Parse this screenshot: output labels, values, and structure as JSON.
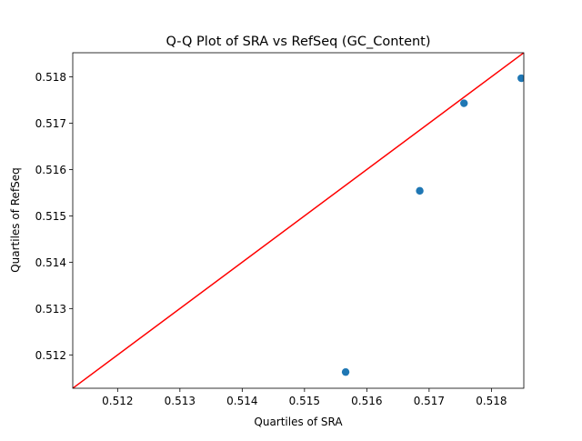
{
  "chart_data": {
    "type": "scatter",
    "title": "Q-Q Plot of SRA vs RefSeq (GC_Content)",
    "xlabel": "Quartiles of SRA",
    "ylabel": "Quartiles of RefSeq",
    "xlim": [
      0.51128,
      0.51852
    ],
    "ylim": [
      0.51128,
      0.51852
    ],
    "xticks": [
      "0.512",
      "0.513",
      "0.514",
      "0.515",
      "0.516",
      "0.517",
      "0.518"
    ],
    "yticks": [
      "0.512",
      "0.513",
      "0.514",
      "0.515",
      "0.516",
      "0.517",
      "0.518"
    ],
    "points": [
      {
        "x": 0.51566,
        "y": 0.51163
      },
      {
        "x": 0.51685,
        "y": 0.51554
      },
      {
        "x": 0.51756,
        "y": 0.51743
      },
      {
        "x": 0.51848,
        "y": 0.51797
      }
    ],
    "reference_line": {
      "from": [
        0.51128,
        0.51128
      ],
      "to": [
        0.51852,
        0.51852
      ]
    },
    "point_color": "#1f77b4",
    "line_color": "#ff0000",
    "grid": false,
    "legend": "none"
  }
}
